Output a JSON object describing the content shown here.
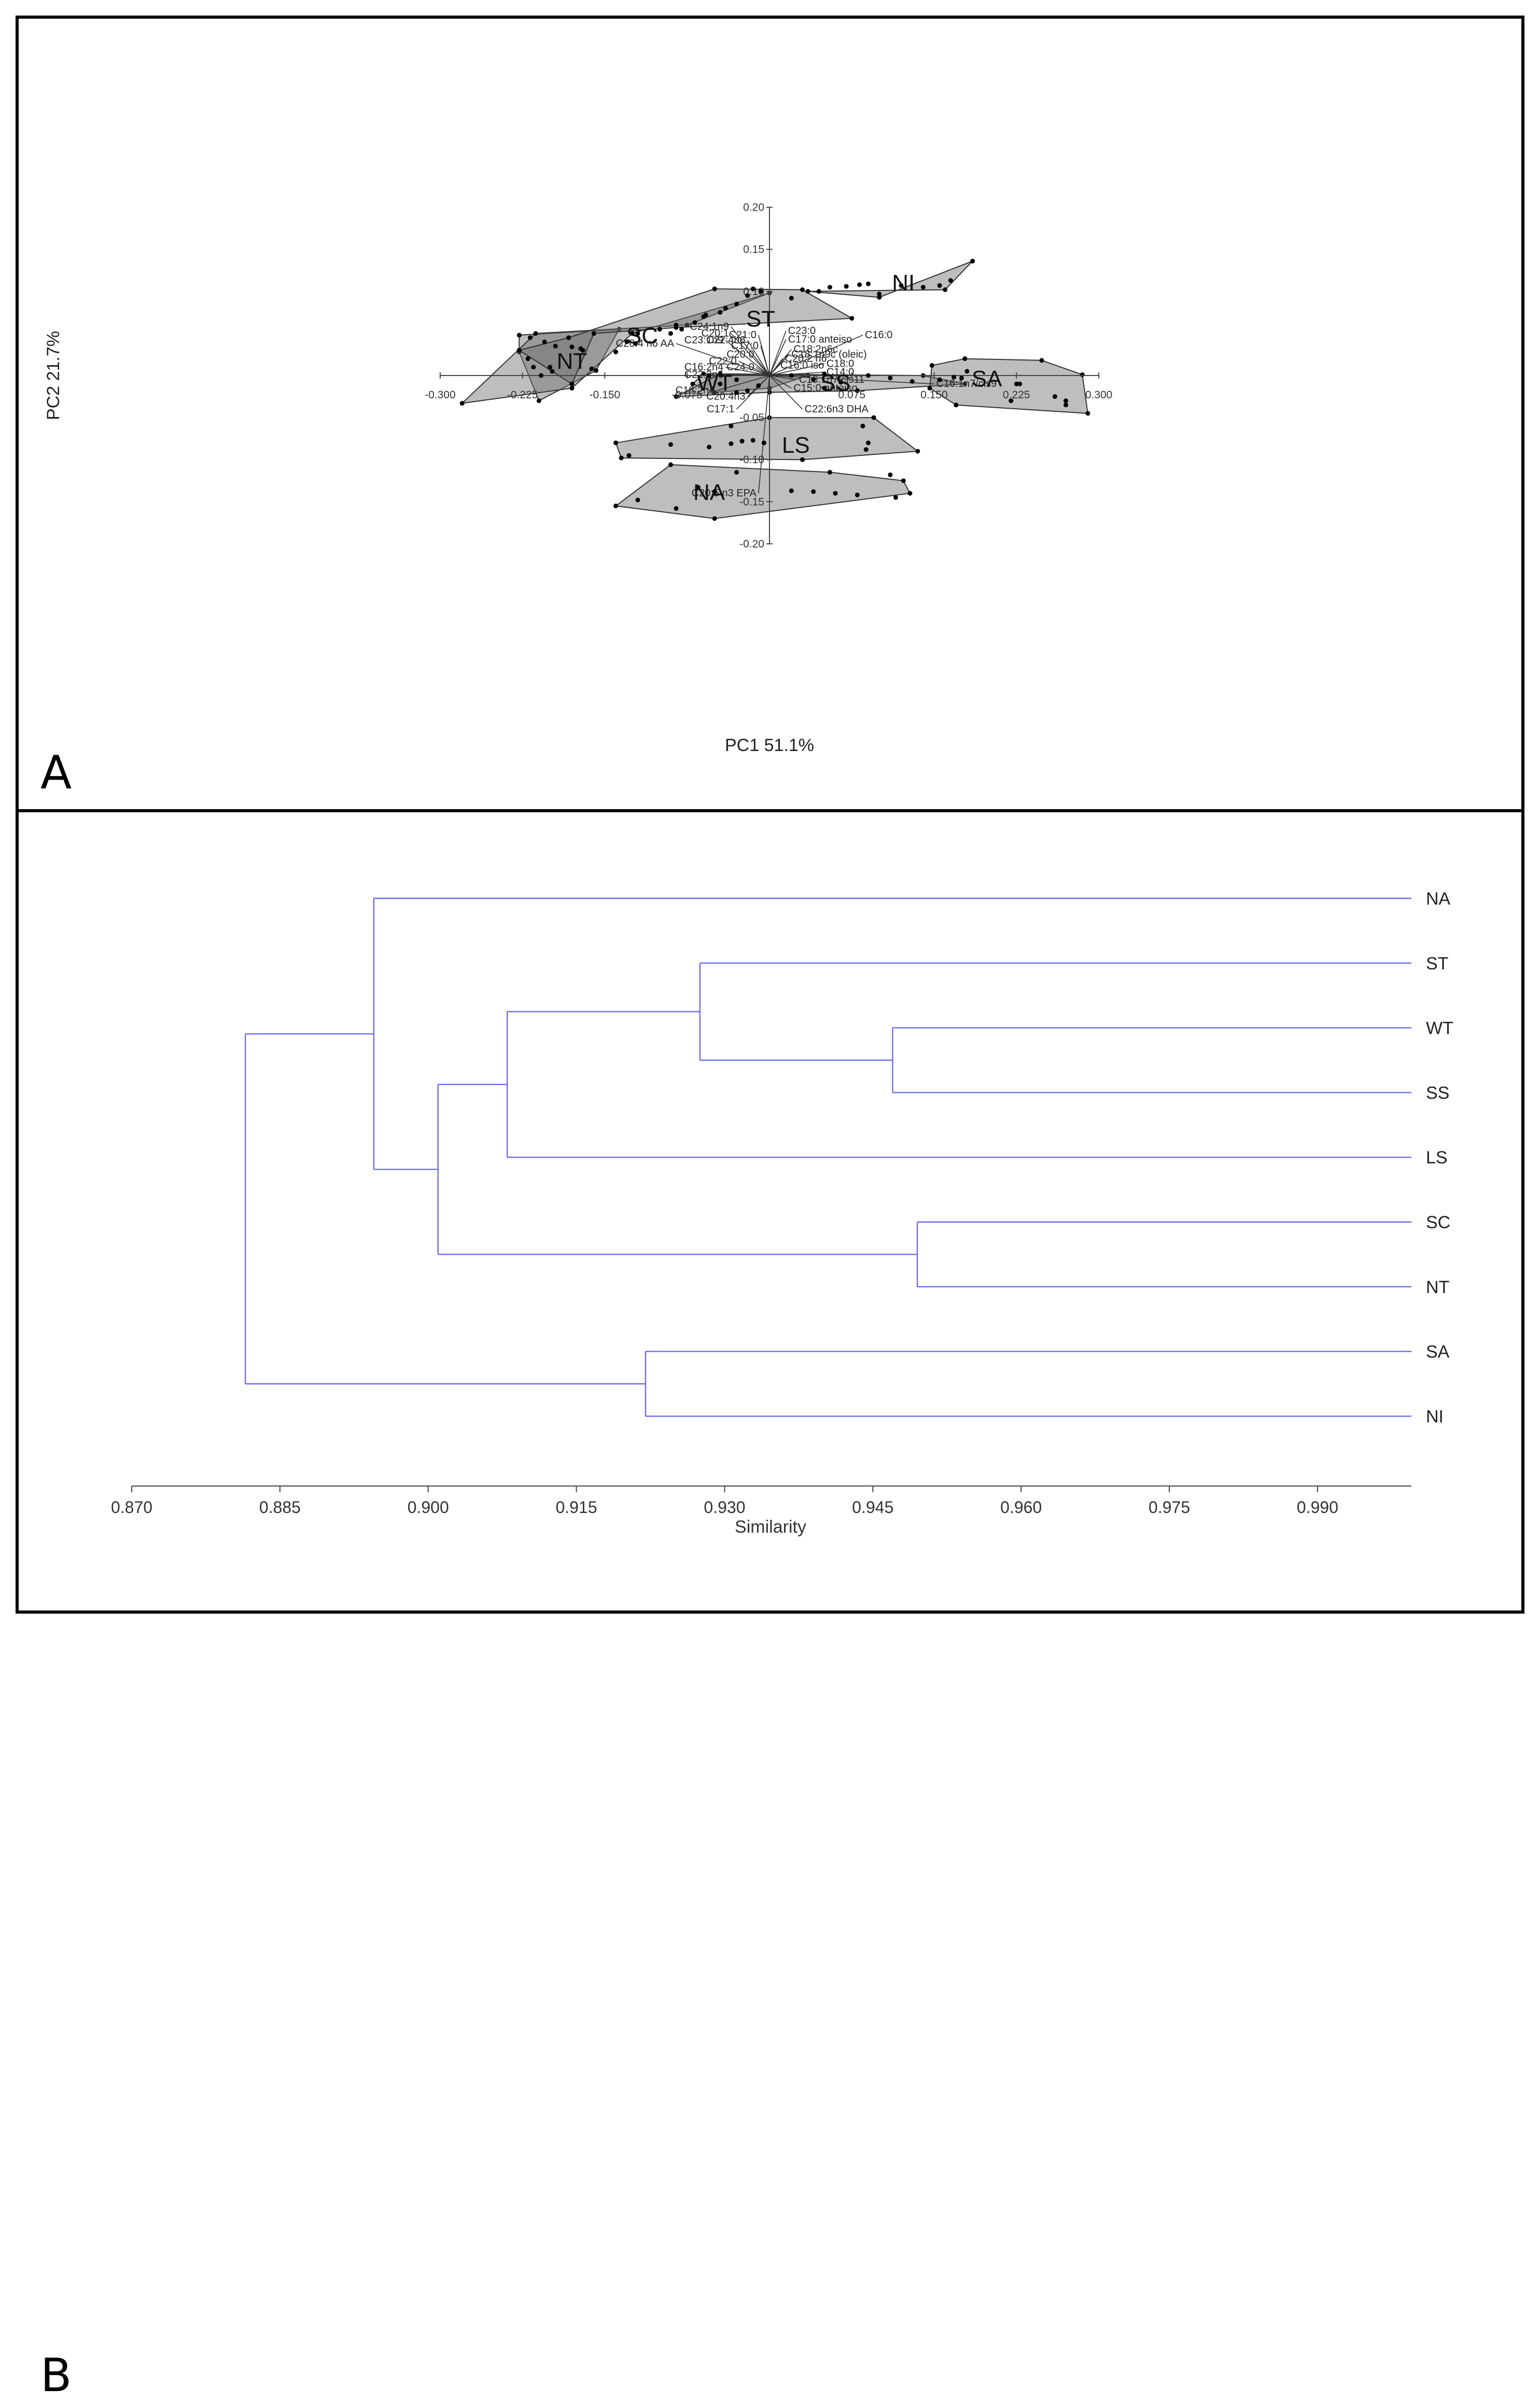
{
  "chart_data": [
    {
      "type": "scatter",
      "panel_label": "A",
      "xlabel": "PC1 51.1%",
      "ylabel": "PC2 21.7%",
      "xlim": [
        -0.3,
        0.3
      ],
      "ylim": [
        -0.2,
        0.2
      ],
      "x_ticks": [
        "-0.300",
        "-0.225",
        "-0.150",
        "-0.075",
        "0.075",
        "0.150",
        "0.225",
        "0.300"
      ],
      "x_tick_values": [
        -0.3,
        -0.225,
        -0.15,
        -0.075,
        0.075,
        0.15,
        0.225,
        0.3
      ],
      "y_ticks": [
        "0.20",
        "0.15",
        "0.10",
        "-0.05",
        "-0.10",
        "-0.15",
        "-0.20"
      ],
      "y_tick_values": [
        0.2,
        0.15,
        0.1,
        -0.05,
        -0.1,
        -0.15,
        -0.2
      ],
      "groups": [
        {
          "name": "NT",
          "label_at": [
            -0.18,
            0.018
          ],
          "hull": [
            [
              -0.228,
              0.048
            ],
            [
              -0.137,
              0.055
            ],
            [
              -0.158,
              0.006
            ],
            [
              -0.21,
              -0.03
            ],
            [
              -0.228,
              0.028
            ]
          ],
          "points": [
            [
              -0.218,
              0.045
            ],
            [
              -0.205,
              0.04
            ],
            [
              -0.195,
              0.035
            ],
            [
              -0.18,
              0.034
            ],
            [
              -0.172,
              0.032
            ],
            [
              -0.17,
              0.03
            ],
            [
              -0.2,
              0.01
            ],
            [
              -0.215,
              0.01
            ],
            [
              -0.208,
              0.0
            ],
            [
              -0.198,
              0.005
            ],
            [
              -0.162,
              0.008
            ],
            [
              -0.22,
              0.02
            ]
          ]
        },
        {
          "name": "SC",
          "label_at": [
            -0.116,
            0.048
          ],
          "hull": [
            [
              -0.213,
              0.05
            ],
            [
              -0.075,
              0.06
            ],
            [
              -0.0,
              0.098
            ],
            [
              -0.125,
              0.05
            ],
            [
              -0.18,
              -0.015
            ],
            [
              -0.28,
              -0.033
            ]
          ],
          "points": [
            [
              -0.13,
              0.04
            ],
            [
              -0.122,
              0.038
            ],
            [
              -0.14,
              0.028
            ],
            [
              -0.09,
              0.05
            ],
            [
              -0.08,
              0.055
            ],
            [
              -0.06,
              0.07
            ],
            [
              -0.045,
              0.075
            ]
          ]
        },
        {
          "name": "ST",
          "label_at": [
            -0.008,
            0.068
          ],
          "hull": [
            [
              -0.228,
              0.03
            ],
            [
              -0.183,
              0.045
            ],
            [
              -0.05,
              0.103
            ],
            [
              0.03,
              0.102
            ],
            [
              0.075,
              0.068
            ],
            [
              -0.085,
              0.057
            ],
            [
              -0.16,
              0.05
            ],
            [
              -0.18,
              -0.01
            ]
          ],
          "points": [
            [
              -0.12,
              0.05
            ],
            [
              -0.1,
              0.055
            ],
            [
              -0.085,
              0.06
            ],
            [
              -0.068,
              0.063
            ],
            [
              -0.058,
              0.072
            ],
            [
              -0.04,
              0.08
            ],
            [
              -0.03,
              0.085
            ],
            [
              -0.02,
              0.095
            ],
            [
              -0.008,
              0.1
            ],
            [
              0.02,
              0.092
            ],
            [
              -0.015,
              0.103
            ]
          ]
        },
        {
          "name": "NI",
          "label_at": [
            0.122,
            0.111
          ],
          "hull": [
            [
              0.035,
              0.1
            ],
            [
              0.16,
              0.102
            ],
            [
              0.185,
              0.136
            ],
            [
              0.1,
              0.093
            ]
          ],
          "points": [
            [
              0.045,
              0.1
            ],
            [
              0.055,
              0.105
            ],
            [
              0.07,
              0.106
            ],
            [
              0.082,
              0.108
            ],
            [
              0.09,
              0.109
            ],
            [
              0.1,
              0.097
            ],
            [
              0.12,
              0.107
            ],
            [
              0.14,
              0.105
            ],
            [
              0.155,
              0.107
            ],
            [
              0.165,
              0.113
            ]
          ]
        },
        {
          "name": "WT",
          "label_at": [
            -0.05,
            -0.008
          ],
          "hull": [
            [
              -0.06,
              0.002
            ],
            [
              0.035,
              0.0
            ],
            [
              0.0,
              -0.015
            ],
            [
              -0.05,
              -0.02
            ],
            [
              -0.07,
              -0.01
            ]
          ],
          "points": [
            [
              -0.055,
              0.0
            ],
            [
              -0.045,
              -0.01
            ],
            [
              -0.03,
              -0.005
            ],
            [
              -0.02,
              -0.018
            ],
            [
              -0.01,
              -0.012
            ]
          ]
        },
        {
          "name": "SS",
          "label_at": [
            0.06,
            -0.008
          ],
          "hull": [
            [
              -0.045,
              0.002
            ],
            [
              0.14,
              0.0
            ],
            [
              0.178,
              -0.01
            ],
            [
              0.08,
              -0.018
            ],
            [
              -0.0,
              -0.02
            ],
            [
              -0.085,
              -0.025
            ]
          ],
          "points": [
            [
              0.02,
              0.0
            ],
            [
              0.04,
              -0.005
            ],
            [
              0.05,
              0.002
            ],
            [
              0.065,
              -0.008
            ],
            [
              0.09,
              0.0
            ],
            [
              0.11,
              -0.003
            ],
            [
              0.13,
              -0.007
            ],
            [
              -0.03,
              -0.02
            ],
            [
              0.05,
              -0.015
            ]
          ]
        },
        {
          "name": "SA",
          "label_at": [
            0.198,
            -0.003
          ],
          "hull": [
            [
              0.148,
              0.012
            ],
            [
              0.178,
              0.02
            ],
            [
              0.248,
              0.018
            ],
            [
              0.285,
              0.001
            ],
            [
              0.29,
              -0.045
            ],
            [
              0.17,
              -0.035
            ],
            [
              0.146,
              -0.015
            ]
          ],
          "points": [
            [
              0.155,
              -0.005
            ],
            [
              0.168,
              -0.002
            ],
            [
              0.175,
              -0.003
            ],
            [
              0.18,
              0.005
            ],
            [
              0.225,
              -0.01
            ],
            [
              0.228,
              -0.01
            ],
            [
              0.26,
              -0.025
            ],
            [
              0.27,
              -0.03
            ],
            [
              0.27,
              -0.035
            ],
            [
              0.22,
              -0.03
            ]
          ]
        },
        {
          "name": "LS",
          "label_at": [
            0.024,
            -0.082
          ],
          "hull": [
            [
              -0.14,
              -0.08
            ],
            [
              0.0,
              -0.05
            ],
            [
              0.095,
              -0.05
            ],
            [
              0.135,
              -0.09
            ],
            [
              0.03,
              -0.1
            ],
            [
              -0.135,
              -0.098
            ]
          ],
          "points": [
            [
              -0.09,
              -0.082
            ],
            [
              -0.055,
              -0.085
            ],
            [
              -0.035,
              -0.081
            ],
            [
              -0.025,
              -0.078
            ],
            [
              -0.015,
              -0.077
            ],
            [
              -0.005,
              -0.08
            ],
            [
              -0.035,
              -0.06
            ],
            [
              0.085,
              -0.06
            ],
            [
              0.09,
              -0.08
            ],
            [
              0.088,
              -0.088
            ],
            [
              -0.128,
              -0.095
            ]
          ]
        },
        {
          "name": "NA",
          "label_at": [
            -0.055,
            -0.138
          ],
          "hull": [
            [
              -0.14,
              -0.155
            ],
            [
              -0.09,
              -0.106
            ],
            [
              0.055,
              -0.115
            ],
            [
              0.122,
              -0.125
            ],
            [
              0.128,
              -0.14
            ],
            [
              -0.05,
              -0.17
            ]
          ],
          "points": [
            [
              -0.12,
              -0.148
            ],
            [
              -0.085,
              -0.158
            ],
            [
              -0.065,
              -0.133
            ],
            [
              -0.05,
              -0.138
            ],
            [
              -0.03,
              -0.115
            ],
            [
              0.02,
              -0.137
            ],
            [
              0.04,
              -0.138
            ],
            [
              0.06,
              -0.14
            ],
            [
              0.08,
              -0.142
            ],
            [
              0.115,
              -0.145
            ],
            [
              0.11,
              -0.118
            ]
          ]
        }
      ],
      "vectors": [
        {
          "label": "C16:0",
          "end": [
            0.085,
            0.048
          ]
        },
        {
          "label": "C23:0",
          "end": [
            0.015,
            0.053
          ]
        },
        {
          "label": "C17:0 anteiso",
          "end": [
            0.015,
            0.043
          ]
        },
        {
          "label": "C18:2n6c",
          "end": [
            0.02,
            0.031
          ]
        },
        {
          "label": "C18:1n9c (oleic)",
          "end": [
            0.018,
            0.025
          ]
        },
        {
          "label": "C20:2 n6",
          "end": [
            0.012,
            0.02
          ]
        },
        {
          "label": "C16:0 iso",
          "end": [
            0.008,
            0.012
          ]
        },
        {
          "label": "C18:0",
          "end": [
            0.05,
            0.014
          ]
        },
        {
          "label": "C14:0",
          "end": [
            0.05,
            0.004
          ]
        },
        {
          "label": "C16:1n7/cis11",
          "end": [
            0.025,
            -0.005
          ]
        },
        {
          "label": "C16:1n7/cis9",
          "end": [
            0.15,
            -0.01
          ]
        },
        {
          "label": "C15:0 anteiso",
          "end": [
            0.02,
            -0.015
          ]
        },
        {
          "label": "C22:6n3 DHA",
          "end": [
            0.03,
            -0.04
          ]
        },
        {
          "label": "C20:5 n3 EPA",
          "end": [
            -0.01,
            -0.14
          ]
        },
        {
          "label": "C17:1",
          "end": [
            -0.03,
            -0.04
          ]
        },
        {
          "label": "C20:4n3",
          "end": [
            -0.02,
            -0.025
          ]
        },
        {
          "label": "C18:2n4",
          "end": [
            -0.048,
            -0.018
          ]
        },
        {
          "label": "C22:2n6",
          "end": [
            -0.04,
            0.001
          ]
        },
        {
          "label": "C16:2n4",
          "end": [
            -0.04,
            0.01
          ]
        },
        {
          "label": "C22:0",
          "end": [
            -0.028,
            0.017
          ]
        },
        {
          "label": "C24:0",
          "end": [
            -0.012,
            0.01
          ]
        },
        {
          "label": "C20:0",
          "end": [
            -0.012,
            0.025
          ]
        },
        {
          "label": "C17:0",
          "end": [
            -0.008,
            0.035
          ]
        },
        {
          "label": "C22:4n6",
          "end": [
            -0.02,
            0.042
          ]
        },
        {
          "label": "C21:0",
          "end": [
            -0.01,
            0.048
          ]
        },
        {
          "label": "C20:1",
          "end": [
            -0.035,
            0.05
          ]
        },
        {
          "label": "C24:1n9",
          "end": [
            -0.035,
            0.058
          ]
        },
        {
          "label": "C23:1n9",
          "end": [
            -0.04,
            0.042
          ]
        },
        {
          "label": "C20:4 n6 AA",
          "end": [
            -0.085,
            0.038
          ]
        }
      ]
    },
    {
      "type": "dendrogram",
      "panel_label": "B",
      "xlabel": "Similarity",
      "xlim": [
        0.87,
        0.9995
      ],
      "x_ticks": [
        "0.870",
        "0.885",
        "0.900",
        "0.915",
        "0.930",
        "0.945",
        "0.960",
        "0.975",
        "0.990"
      ],
      "x_tick_values": [
        0.87,
        0.885,
        0.9,
        0.915,
        0.93,
        0.945,
        0.96,
        0.975,
        0.99
      ],
      "leaves": [
        "NA",
        "ST",
        "WT",
        "SS",
        "LS",
        "SC",
        "NT",
        "SA",
        "NI"
      ],
      "merges": [
        {
          "a": "WT",
          "b": "SS",
          "similarity": 0.947
        },
        {
          "a": "SC",
          "b": "NT",
          "similarity": 0.9495
        },
        {
          "a": "ST",
          "b": "WT+SS",
          "similarity": 0.9275
        },
        {
          "a": "SA",
          "b": "NI",
          "similarity": 0.922
        },
        {
          "a": "ST+WT+SS",
          "b": "LS",
          "similarity": 0.908
        },
        {
          "a": "ST+WT+SS+LS",
          "b": "SC+NT",
          "similarity": 0.901
        },
        {
          "a": "NA",
          "b": "ST+WT+SS+LS+SC+NT",
          "similarity": 0.8945
        },
        {
          "a": "NA+ST+WT+SS+LS+SC+NT",
          "b": "SA+NI",
          "similarity": 0.8815
        }
      ],
      "line_color": "#6b6bf0"
    }
  ],
  "panel_a_letter": "A",
  "panel_b_letter": "B"
}
